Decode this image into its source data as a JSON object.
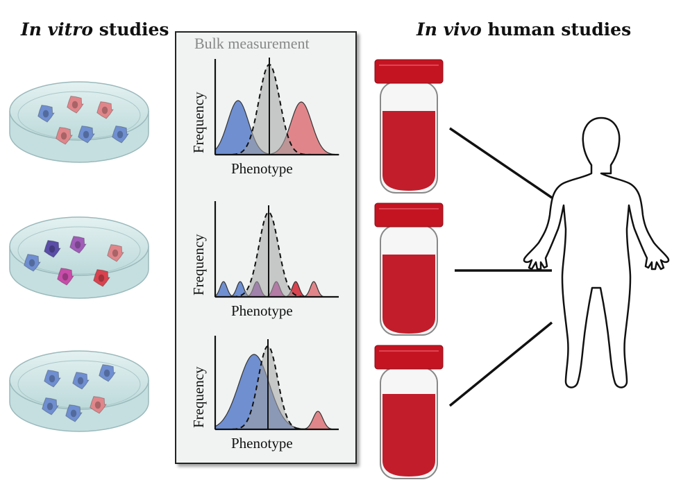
{
  "titles": {
    "left_italic": "In vitro",
    "left_rest": " studies",
    "right_italic": "In vivo",
    "right_rest": " human studies"
  },
  "panel": {
    "title": "Bulk measurement",
    "plots": [
      {
        "ylabel": "Frequency",
        "xlabel": "Phenotype"
      },
      {
        "ylabel": "Frequency",
        "xlabel": "Phenotype"
      },
      {
        "ylabel": "Frequency",
        "xlabel": "Phenotype"
      }
    ]
  },
  "colors": {
    "blue_cell": "#6f8fd1",
    "red_cell": "#e0868a",
    "purple_cell": "#a05cb8",
    "magenta_cell": "#c74da8",
    "crimson_cell": "#d8434f",
    "dark_blue_cell": "#5a4ea8",
    "blood": "#c21d2b",
    "cap": "#c41422",
    "dish": "#cfe5e6",
    "bulk_gray": "#a3a3a3"
  }
}
